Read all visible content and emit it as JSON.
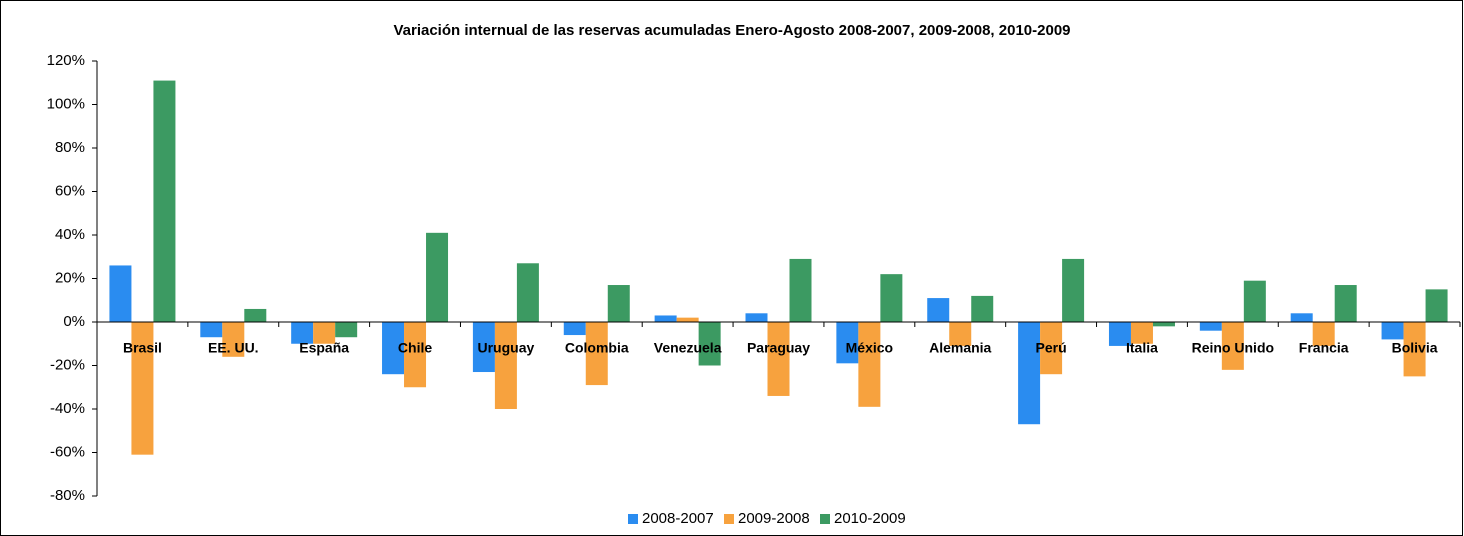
{
  "chart_data": {
    "type": "bar",
    "title": "Variación internual de las reservas acumuladas Enero-Agosto 2008-2007, 2009-2008, 2010-2009",
    "categories": [
      "Brasil",
      "EE. UU.",
      "España",
      "Chile",
      "Uruguay",
      "Colombia",
      "Venezuela",
      "Paraguay",
      "México",
      "Alemania",
      "Perú",
      "Italia",
      "Reino Unido",
      "Francia",
      "Bolivia"
    ],
    "series": [
      {
        "name": "2008-2007",
        "color": "#2a8cf0",
        "values": [
          26,
          -7,
          -10,
          -24,
          -23,
          -6,
          3,
          4,
          -19,
          11,
          -47,
          -11,
          -4,
          4,
          -8
        ]
      },
      {
        "name": "2009-2008",
        "color": "#f7a23e",
        "values": [
          -61,
          -16,
          -10,
          -30,
          -40,
          -29,
          2,
          -34,
          -39,
          -11,
          -24,
          -10,
          -22,
          -11,
          -25
        ]
      },
      {
        "name": "2010-2009",
        "color": "#3c9a62",
        "values": [
          111,
          6,
          -7,
          41,
          27,
          17,
          -20,
          29,
          22,
          12,
          29,
          -2,
          19,
          17,
          15
        ]
      }
    ],
    "ylim": [
      -80,
      120
    ],
    "yticks": [
      {
        "value": -80,
        "label": "-80%"
      },
      {
        "value": -60,
        "label": "-60%"
      },
      {
        "value": -40,
        "label": "-40%"
      },
      {
        "value": -20,
        "label": "-20%"
      },
      {
        "value": 0,
        "label": "0%"
      },
      {
        "value": 20,
        "label": "20%"
      },
      {
        "value": 40,
        "label": "40%"
      },
      {
        "value": 60,
        "label": "60%"
      },
      {
        "value": 80,
        "label": "80%"
      },
      {
        "value": 100,
        "label": "100%"
      },
      {
        "value": 120,
        "label": "120%"
      }
    ],
    "legend": "bottom"
  }
}
